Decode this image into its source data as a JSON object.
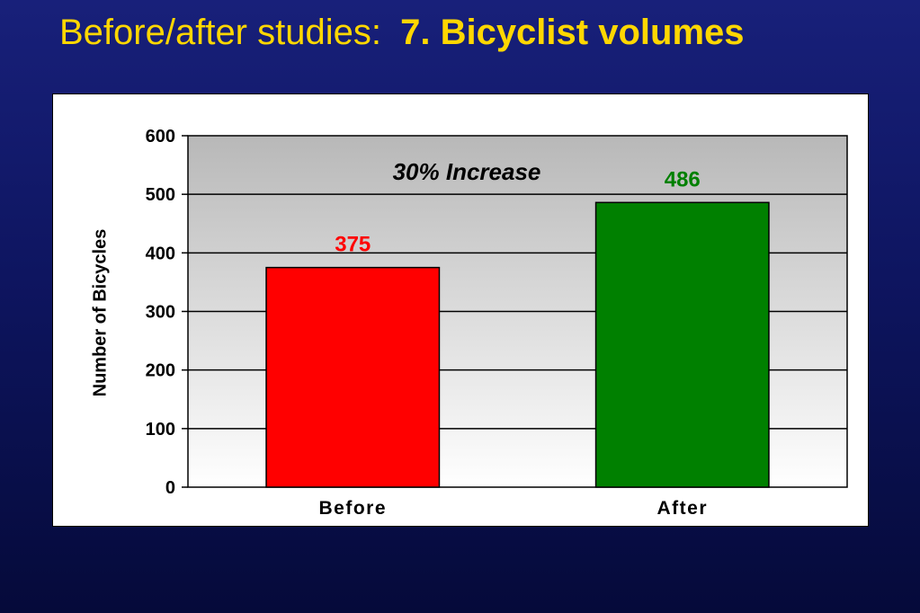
{
  "slide": {
    "title_regular": "Before/after studies:",
    "title_bold": "7. Bicyclist volumes"
  },
  "colors": {
    "title": "#ffd700",
    "before_bar": "#ff0000",
    "after_bar": "#008000"
  },
  "chart_data": {
    "type": "bar",
    "categories": [
      "Before",
      "After"
    ],
    "values": [
      375,
      486
    ],
    "data_labels": [
      "375",
      "486"
    ],
    "bar_colors": [
      "#ff0000",
      "#008000"
    ],
    "title": "",
    "xlabel": "",
    "ylabel": "Number of Bicycles",
    "ylim": [
      0,
      600
    ],
    "yticks": [
      0,
      100,
      200,
      300,
      400,
      500,
      600
    ],
    "grid": true,
    "legend": "none",
    "annotation": "30% Increase"
  }
}
